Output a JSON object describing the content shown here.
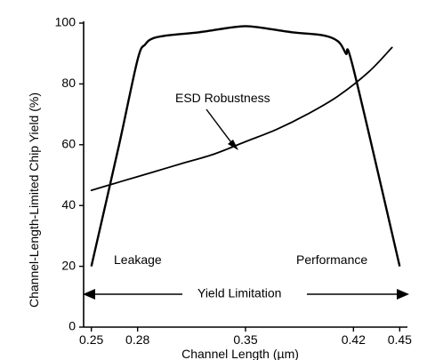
{
  "chart_data": {
    "type": "line",
    "xlabel": "Channel Length (µm)",
    "ylabel": "Channel-Length-Limited Chip Yield (%)",
    "xlim": [
      0.245,
      0.455
    ],
    "ylim": [
      0,
      100
    ],
    "x_ticks": [
      0.25,
      0.28,
      0.35,
      0.42,
      0.45
    ],
    "y_ticks": [
      0,
      20,
      40,
      60,
      80,
      100
    ],
    "grid": false,
    "series": [
      {
        "x": [
          0.25,
          0.268,
          0.28,
          0.285,
          0.29,
          0.3,
          0.32,
          0.34,
          0.35,
          0.36,
          0.38,
          0.4,
          0.41,
          0.415,
          0.42,
          0.45
        ],
        "y": [
          20,
          60,
          88,
          93,
          95,
          96,
          97,
          98.5,
          99,
          98.5,
          97,
          96,
          94,
          90,
          85,
          20
        ]
      },
      {
        "name": "ESD Robustness",
        "x": [
          0.25,
          0.27,
          0.29,
          0.31,
          0.33,
          0.35,
          0.37,
          0.39,
          0.41,
          0.43,
          0.445
        ],
        "y": [
          45,
          48,
          51,
          54,
          57,
          61,
          65,
          70,
          76,
          84,
          92
        ]
      }
    ],
    "annotations": {
      "esd_label": "ESD Robustness",
      "leakage": "Leakage",
      "performance": "Performance",
      "yield_limitation": "Yield Limitation"
    }
  }
}
